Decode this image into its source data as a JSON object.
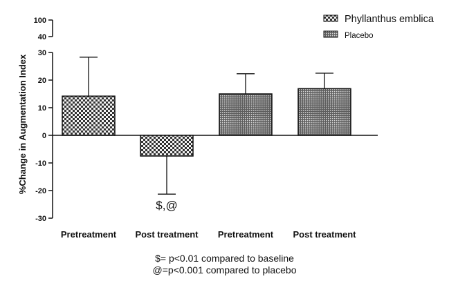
{
  "chart_data": {
    "type": "bar",
    "ylabel": "%Change in Augmentation Index",
    "yticks": [
      -30,
      -20,
      -10,
      0,
      10,
      20,
      30,
      40,
      100
    ],
    "ylim": [
      -30,
      100
    ],
    "axis_break": [
      30,
      40
    ],
    "categories": [
      "Pretreatment",
      "Post treatment",
      "Pretreatment",
      "Post treatment"
    ],
    "bars": [
      {
        "category": "Pretreatment",
        "series": "Phyllanthus emblica",
        "value": 14.2,
        "error_high": 28.3
      },
      {
        "category": "Post treatment",
        "series": "Phyllanthus emblica",
        "value": -7.5,
        "error_low": -21.3,
        "annotation": "$,@"
      },
      {
        "category": "Pretreatment",
        "series": "Placebo",
        "value": 15.0,
        "error_high": 22.3
      },
      {
        "category": "Post treatment",
        "series": "Placebo",
        "value": 16.9,
        "error_high": 22.5
      }
    ],
    "legend": [
      {
        "name": "Phyllanthus emblica",
        "pattern": "checker"
      },
      {
        "name": "Placebo",
        "pattern": "fine-dots"
      }
    ],
    "legend_position": "top-right",
    "footnotes": [
      "$= p<0.01 compared to baseline",
      "@=p<0.001 compared to placebo"
    ],
    "colors": {
      "bar_fill": "#7a7a7a",
      "pattern_dark": "#333333",
      "pattern_light": "#ffffff",
      "axis": "#111111"
    }
  }
}
